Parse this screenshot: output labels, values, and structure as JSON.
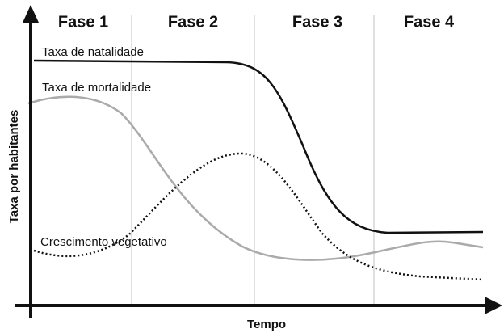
{
  "phases": [
    "Fase 1",
    "Fase 2",
    "Fase 3",
    "Fase 4"
  ],
  "y_axis_label": "Taxa por habitantes",
  "x_axis_label": "Tempo",
  "curves": {
    "birth_rate": "Taxa de natalidade",
    "death_rate": "Taxa de mortalidade",
    "natural_growth": "Crescimento vegetativo"
  }
}
